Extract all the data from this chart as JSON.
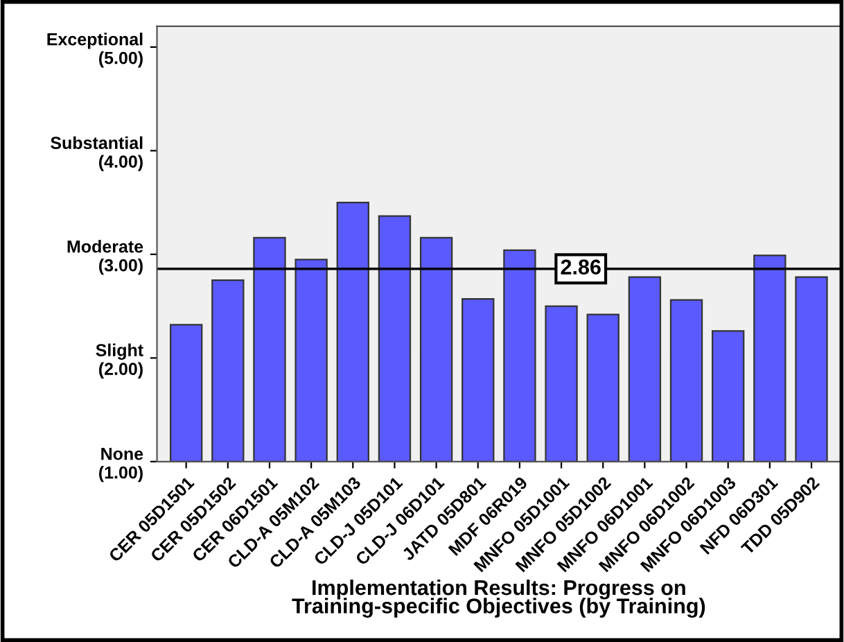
{
  "chart_data": {
    "type": "bar",
    "xlabel": "Implementation Results: Progress on\nTraining-specific Objectives (by Training)",
    "categories": [
      "CER 05D1501",
      "CER 05D1502",
      "CER 06D1501",
      "CLD-A 05M102",
      "CLD-A 05M103",
      "CLD-J 05D101",
      "CLD-J 06D101",
      "JATD 05D801",
      "MDF 06R019",
      "MNFO 05D1001",
      "MNFO 05D1002",
      "MNFO 06D1001",
      "MNFO 06D1002",
      "MNFO 06D1003",
      "NFD 06D301",
      "TDD 05D902"
    ],
    "values": [
      2.32,
      2.75,
      3.16,
      2.95,
      3.5,
      3.37,
      3.16,
      2.57,
      3.04,
      2.5,
      2.42,
      2.78,
      2.56,
      2.26,
      2.99,
      2.78
    ],
    "color": "#5a5aff",
    "ylim": [
      1,
      5.2
    ],
    "yticks": [
      {
        "value": 1,
        "label": "None\n(1.00)"
      },
      {
        "value": 2,
        "label": "Slight\n(2.00)"
      },
      {
        "value": 3,
        "label": "Moderate\n(3.00)"
      },
      {
        "value": 4,
        "label": "Substantial\n(4.00)"
      },
      {
        "value": 5,
        "label": "Exceptional\n(5.00)"
      }
    ],
    "ref_lines": [
      {
        "axis": "y",
        "value": 2.86,
        "label": "2.86",
        "color": "#000000"
      }
    ],
    "grid": false,
    "legend": false
  }
}
